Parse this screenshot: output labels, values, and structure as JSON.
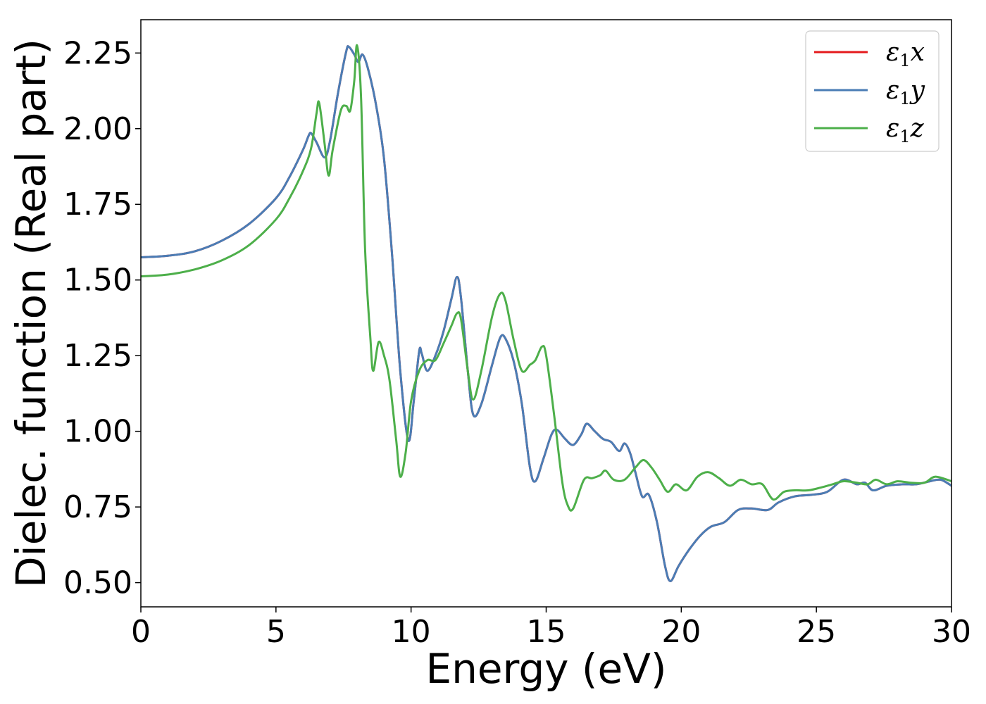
{
  "chart_data": {
    "type": "line",
    "title": "",
    "xlabel": "Energy (eV)",
    "ylabel": "Dielec. function (Real part)",
    "xlim": [
      0,
      30
    ],
    "ylim": [
      0.42,
      2.36
    ],
    "xticks": [
      "0",
      "5",
      "10",
      "15",
      "20",
      "25",
      "30"
    ],
    "yticks": [
      "0.50",
      "0.75",
      "1.00",
      "1.25",
      "1.50",
      "1.75",
      "2.00",
      "2.25"
    ],
    "grid": false,
    "legend_position": "top-right",
    "series": [
      {
        "name": "ε₁x",
        "legend_label": {
          "main": "ε",
          "sub": "1",
          "axis": "x"
        },
        "color": "#e41a1c",
        "points": [
          [
            0,
            1.575
          ],
          [
            1,
            1.58
          ],
          [
            2,
            1.595
          ],
          [
            3,
            1.63
          ],
          [
            4,
            1.685
          ],
          [
            5,
            1.77
          ],
          [
            5.5,
            1.84
          ],
          [
            6,
            1.93
          ],
          [
            6.2,
            1.975
          ],
          [
            6.3,
            1.985
          ],
          [
            6.5,
            1.955
          ],
          [
            6.8,
            1.905
          ],
          [
            7,
            1.96
          ],
          [
            7.3,
            2.12
          ],
          [
            7.6,
            2.255
          ],
          [
            7.7,
            2.27
          ],
          [
            7.9,
            2.245
          ],
          [
            8.05,
            2.22
          ],
          [
            8.2,
            2.245
          ],
          [
            8.4,
            2.2
          ],
          [
            8.7,
            2.08
          ],
          [
            9,
            1.9
          ],
          [
            9.3,
            1.58
          ],
          [
            9.6,
            1.2
          ],
          [
            9.9,
            0.97
          ],
          [
            10.1,
            1.1
          ],
          [
            10.3,
            1.265
          ],
          [
            10.4,
            1.255
          ],
          [
            10.6,
            1.2
          ],
          [
            10.9,
            1.25
          ],
          [
            11.2,
            1.33
          ],
          [
            11.5,
            1.44
          ],
          [
            11.7,
            1.51
          ],
          [
            11.85,
            1.44
          ],
          [
            12.1,
            1.2
          ],
          [
            12.3,
            1.055
          ],
          [
            12.6,
            1.09
          ],
          [
            13,
            1.22
          ],
          [
            13.3,
            1.31
          ],
          [
            13.5,
            1.305
          ],
          [
            13.8,
            1.23
          ],
          [
            14.1,
            1.09
          ],
          [
            14.4,
            0.88
          ],
          [
            14.6,
            0.835
          ],
          [
            14.9,
            0.91
          ],
          [
            15.2,
            0.99
          ],
          [
            15.4,
            1.005
          ],
          [
            15.7,
            0.975
          ],
          [
            16,
            0.955
          ],
          [
            16.3,
            0.99
          ],
          [
            16.5,
            1.025
          ],
          [
            16.8,
            1.0
          ],
          [
            17.1,
            0.975
          ],
          [
            17.4,
            0.965
          ],
          [
            17.7,
            0.935
          ],
          [
            17.9,
            0.96
          ],
          [
            18.1,
            0.93
          ],
          [
            18.3,
            0.865
          ],
          [
            18.55,
            0.785
          ],
          [
            18.8,
            0.79
          ],
          [
            19.1,
            0.7
          ],
          [
            19.4,
            0.555
          ],
          [
            19.6,
            0.505
          ],
          [
            19.9,
            0.555
          ],
          [
            20.3,
            0.61
          ],
          [
            20.7,
            0.655
          ],
          [
            21.1,
            0.685
          ],
          [
            21.6,
            0.7
          ],
          [
            22.1,
            0.74
          ],
          [
            22.6,
            0.745
          ],
          [
            23.2,
            0.74
          ],
          [
            23.6,
            0.765
          ],
          [
            24.2,
            0.785
          ],
          [
            24.8,
            0.79
          ],
          [
            25.4,
            0.8
          ],
          [
            26,
            0.84
          ],
          [
            26.5,
            0.825
          ],
          [
            26.8,
            0.83
          ],
          [
            27.1,
            0.805
          ],
          [
            27.6,
            0.82
          ],
          [
            28.2,
            0.825
          ],
          [
            28.7,
            0.825
          ],
          [
            29.2,
            0.835
          ],
          [
            29.6,
            0.84
          ],
          [
            30,
            0.82
          ]
        ]
      },
      {
        "name": "ε₁y",
        "legend_label": {
          "main": "ε",
          "sub": "1",
          "axis": "y"
        },
        "color": "#4a7db5",
        "points": [
          [
            0,
            1.575
          ],
          [
            1,
            1.58
          ],
          [
            2,
            1.595
          ],
          [
            3,
            1.63
          ],
          [
            4,
            1.685
          ],
          [
            5,
            1.77
          ],
          [
            5.5,
            1.84
          ],
          [
            6,
            1.93
          ],
          [
            6.2,
            1.975
          ],
          [
            6.3,
            1.985
          ],
          [
            6.5,
            1.955
          ],
          [
            6.8,
            1.905
          ],
          [
            7,
            1.96
          ],
          [
            7.3,
            2.12
          ],
          [
            7.6,
            2.255
          ],
          [
            7.7,
            2.27
          ],
          [
            7.9,
            2.245
          ],
          [
            8.05,
            2.22
          ],
          [
            8.2,
            2.245
          ],
          [
            8.4,
            2.2
          ],
          [
            8.7,
            2.08
          ],
          [
            9,
            1.9
          ],
          [
            9.3,
            1.58
          ],
          [
            9.6,
            1.2
          ],
          [
            9.9,
            0.97
          ],
          [
            10.1,
            1.1
          ],
          [
            10.3,
            1.265
          ],
          [
            10.4,
            1.255
          ],
          [
            10.6,
            1.2
          ],
          [
            10.9,
            1.25
          ],
          [
            11.2,
            1.33
          ],
          [
            11.5,
            1.44
          ],
          [
            11.7,
            1.51
          ],
          [
            11.85,
            1.44
          ],
          [
            12.1,
            1.2
          ],
          [
            12.3,
            1.055
          ],
          [
            12.6,
            1.09
          ],
          [
            13,
            1.22
          ],
          [
            13.3,
            1.31
          ],
          [
            13.5,
            1.305
          ],
          [
            13.8,
            1.23
          ],
          [
            14.1,
            1.09
          ],
          [
            14.4,
            0.88
          ],
          [
            14.6,
            0.835
          ],
          [
            14.9,
            0.91
          ],
          [
            15.2,
            0.99
          ],
          [
            15.4,
            1.005
          ],
          [
            15.7,
            0.975
          ],
          [
            16,
            0.955
          ],
          [
            16.3,
            0.99
          ],
          [
            16.5,
            1.025
          ],
          [
            16.8,
            1.0
          ],
          [
            17.1,
            0.975
          ],
          [
            17.4,
            0.965
          ],
          [
            17.7,
            0.935
          ],
          [
            17.9,
            0.96
          ],
          [
            18.1,
            0.93
          ],
          [
            18.3,
            0.865
          ],
          [
            18.55,
            0.785
          ],
          [
            18.8,
            0.79
          ],
          [
            19.1,
            0.7
          ],
          [
            19.4,
            0.555
          ],
          [
            19.6,
            0.505
          ],
          [
            19.9,
            0.555
          ],
          [
            20.3,
            0.61
          ],
          [
            20.7,
            0.655
          ],
          [
            21.1,
            0.685
          ],
          [
            21.6,
            0.7
          ],
          [
            22.1,
            0.74
          ],
          [
            22.6,
            0.745
          ],
          [
            23.2,
            0.74
          ],
          [
            23.6,
            0.765
          ],
          [
            24.2,
            0.785
          ],
          [
            24.8,
            0.79
          ],
          [
            25.4,
            0.8
          ],
          [
            26,
            0.84
          ],
          [
            26.5,
            0.825
          ],
          [
            26.8,
            0.83
          ],
          [
            27.1,
            0.805
          ],
          [
            27.6,
            0.82
          ],
          [
            28.2,
            0.825
          ],
          [
            28.7,
            0.825
          ],
          [
            29.2,
            0.835
          ],
          [
            29.6,
            0.84
          ],
          [
            30,
            0.82
          ]
        ]
      },
      {
        "name": "ε₁z",
        "legend_label": {
          "main": "ε",
          "sub": "1",
          "axis": "z"
        },
        "color": "#4daf4a",
        "points": [
          [
            0,
            1.512
          ],
          [
            1,
            1.518
          ],
          [
            2,
            1.535
          ],
          [
            3,
            1.565
          ],
          [
            4,
            1.615
          ],
          [
            5,
            1.7
          ],
          [
            5.5,
            1.77
          ],
          [
            6,
            1.86
          ],
          [
            6.3,
            1.935
          ],
          [
            6.5,
            2.05
          ],
          [
            6.6,
            2.085
          ],
          [
            6.8,
            1.95
          ],
          [
            6.95,
            1.845
          ],
          [
            7.1,
            1.93
          ],
          [
            7.4,
            2.06
          ],
          [
            7.6,
            2.075
          ],
          [
            7.75,
            2.06
          ],
          [
            7.9,
            2.16
          ],
          [
            8.0,
            2.275
          ],
          [
            8.15,
            2.1
          ],
          [
            8.3,
            1.6
          ],
          [
            8.5,
            1.3
          ],
          [
            8.6,
            1.2
          ],
          [
            8.8,
            1.295
          ],
          [
            9.0,
            1.25
          ],
          [
            9.2,
            1.17
          ],
          [
            9.45,
            0.97
          ],
          [
            9.6,
            0.85
          ],
          [
            9.8,
            0.93
          ],
          [
            10.0,
            1.1
          ],
          [
            10.3,
            1.2
          ],
          [
            10.6,
            1.235
          ],
          [
            10.9,
            1.235
          ],
          [
            11.2,
            1.29
          ],
          [
            11.5,
            1.35
          ],
          [
            11.7,
            1.39
          ],
          [
            11.85,
            1.37
          ],
          [
            12.1,
            1.2
          ],
          [
            12.3,
            1.105
          ],
          [
            12.6,
            1.2
          ],
          [
            13.0,
            1.38
          ],
          [
            13.3,
            1.455
          ],
          [
            13.5,
            1.43
          ],
          [
            13.8,
            1.3
          ],
          [
            14.1,
            1.2
          ],
          [
            14.4,
            1.22
          ],
          [
            14.6,
            1.235
          ],
          [
            14.85,
            1.28
          ],
          [
            15.0,
            1.25
          ],
          [
            15.3,
            1.05
          ],
          [
            15.6,
            0.83
          ],
          [
            15.8,
            0.755
          ],
          [
            16.0,
            0.745
          ],
          [
            16.4,
            0.84
          ],
          [
            16.7,
            0.845
          ],
          [
            17.0,
            0.855
          ],
          [
            17.2,
            0.87
          ],
          [
            17.5,
            0.84
          ],
          [
            17.9,
            0.84
          ],
          [
            18.3,
            0.88
          ],
          [
            18.6,
            0.905
          ],
          [
            18.9,
            0.88
          ],
          [
            19.2,
            0.84
          ],
          [
            19.5,
            0.8
          ],
          [
            19.8,
            0.825
          ],
          [
            20.2,
            0.805
          ],
          [
            20.6,
            0.85
          ],
          [
            21.0,
            0.865
          ],
          [
            21.4,
            0.845
          ],
          [
            21.8,
            0.82
          ],
          [
            22.2,
            0.84
          ],
          [
            22.6,
            0.825
          ],
          [
            23.0,
            0.825
          ],
          [
            23.4,
            0.775
          ],
          [
            23.8,
            0.8
          ],
          [
            24.2,
            0.805
          ],
          [
            24.7,
            0.805
          ],
          [
            25.2,
            0.815
          ],
          [
            25.6,
            0.825
          ],
          [
            26.0,
            0.835
          ],
          [
            26.5,
            0.83
          ],
          [
            26.9,
            0.825
          ],
          [
            27.2,
            0.84
          ],
          [
            27.6,
            0.825
          ],
          [
            28.0,
            0.835
          ],
          [
            28.5,
            0.83
          ],
          [
            29.0,
            0.83
          ],
          [
            29.4,
            0.85
          ],
          [
            30,
            0.835
          ]
        ]
      }
    ]
  }
}
